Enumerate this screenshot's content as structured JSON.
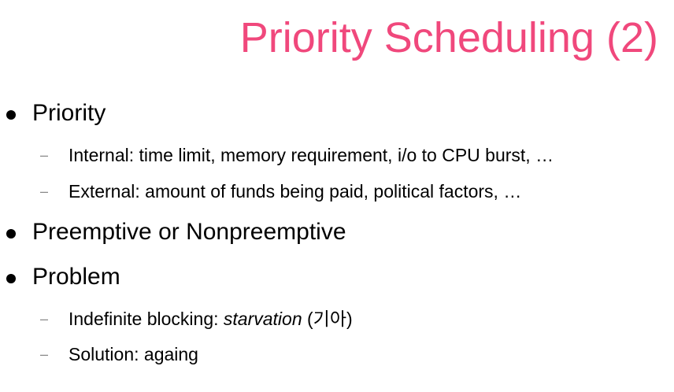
{
  "slide": {
    "title": "Priority Scheduling (2)",
    "title_color": "#f0487c",
    "bullets": [
      {
        "text": "Priority",
        "subitems": [
          {
            "text": "Internal: time limit, memory requirement, i/o to CPU burst, …"
          },
          {
            "text": "External: amount of funds being paid, political factors, …"
          }
        ]
      },
      {
        "text": "Preemptive or Nonpreemptive",
        "subitems": []
      },
      {
        "text": "Problem",
        "subitems": [
          {
            "prefix": "Indefinite blocking: ",
            "emphasis": "starvation",
            "suffix": " (기아)"
          },
          {
            "text": "Solution: againg"
          }
        ]
      }
    ],
    "dash": "–"
  }
}
